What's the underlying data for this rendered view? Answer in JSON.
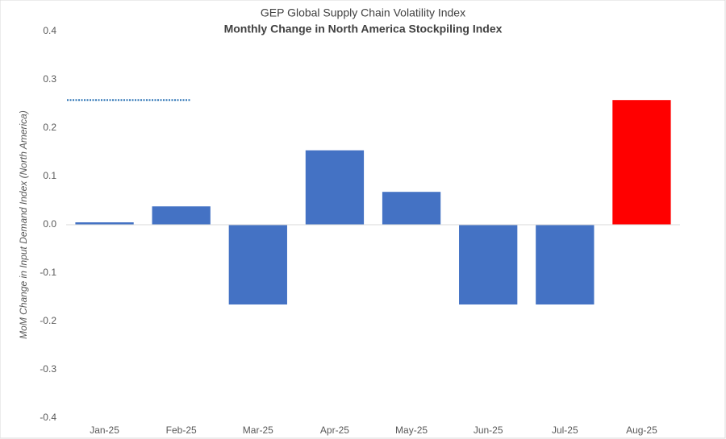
{
  "chart_data": {
    "type": "bar",
    "title": "GEP Global Supply Chain Volatility Index",
    "subtitle": "Monthly Change in North America Stockpiling Index",
    "y_label": "MoM Change in Input Demand Index (North America)",
    "categories": [
      "Jan-25",
      "Feb-25",
      "Mar-25",
      "Apr-25",
      "May-25",
      "Jun-25",
      "Jul-25",
      "Aug-25"
    ],
    "values": [
      0.005,
      0.038,
      -0.165,
      0.154,
      0.068,
      -0.165,
      -0.165,
      0.258
    ],
    "colors": [
      "#4472c4",
      "#4472c4",
      "#4472c4",
      "#4472c4",
      "#4472c4",
      "#4472c4",
      "#4472c4",
      "#ff0000"
    ],
    "reference_line": {
      "value": 0.258,
      "color": "#2e75b6"
    },
    "ylim": [
      -0.4,
      0.4
    ],
    "yticks": [
      -0.4,
      -0.3,
      -0.2,
      -0.1,
      {
        "value": 0,
        "label": "0.0"
      },
      0.1,
      0.2,
      0.3,
      0.4
    ],
    "grid": false
  }
}
